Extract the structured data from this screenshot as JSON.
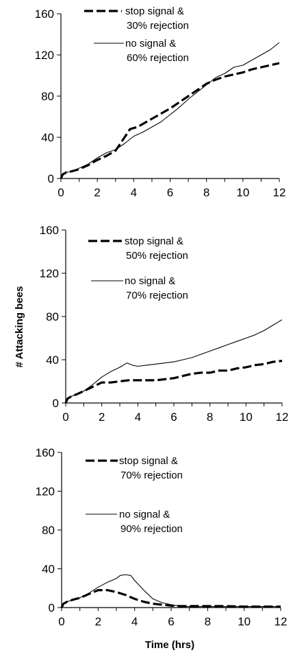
{
  "figure": {
    "ylabel": "# Attacking bees",
    "xlabel": "Time (hrs)"
  },
  "chart_data": [
    {
      "type": "line",
      "title": "",
      "xlabel": "",
      "ylabel": "",
      "xlim": [
        0,
        12
      ],
      "ylim": [
        0,
        160
      ],
      "xticks": [
        "0",
        "2",
        "4",
        "6",
        "8",
        "10",
        "12"
      ],
      "yticks": [
        "0",
        "40",
        "80",
        "120",
        "160"
      ],
      "grid": false,
      "legend_position": "top-center",
      "series": [
        {
          "name": "stop signal & 30% rejection",
          "label_lines": [
            "stop signal &",
            "30% rejection"
          ],
          "style": "dashed",
          "color": "#000000",
          "points": [
            [
              0,
              0
            ],
            [
              0.1,
              4
            ],
            [
              0.3,
              6
            ],
            [
              0.6,
              7
            ],
            [
              1,
              9
            ],
            [
              1.5,
              13
            ],
            [
              2,
              18
            ],
            [
              2.5,
              22
            ],
            [
              3,
              27
            ],
            [
              3.5,
              40
            ],
            [
              3.8,
              48
            ],
            [
              4.2,
              50
            ],
            [
              5,
              58
            ],
            [
              6,
              68
            ],
            [
              7,
              80
            ],
            [
              8,
              92
            ],
            [
              8.5,
              96
            ],
            [
              9,
              99
            ],
            [
              9.5,
              101
            ],
            [
              10,
              103
            ],
            [
              10.5,
              106
            ],
            [
              11,
              108
            ],
            [
              11.5,
              110
            ],
            [
              12,
              112
            ]
          ]
        },
        {
          "name": "no signal & 60% rejection",
          "label_lines": [
            "no signal &",
            "60% rejection"
          ],
          "style": "solid",
          "color": "#000000",
          "points": [
            [
              0,
              0
            ],
            [
              0.1,
              4
            ],
            [
              0.3,
              6
            ],
            [
              0.6,
              7
            ],
            [
              1,
              10
            ],
            [
              1.5,
              14
            ],
            [
              2,
              20
            ],
            [
              2.5,
              25
            ],
            [
              3,
              28
            ],
            [
              3.5,
              34
            ],
            [
              4,
              41
            ],
            [
              4.5,
              45
            ],
            [
              5,
              50
            ],
            [
              5.5,
              55
            ],
            [
              6,
              62
            ],
            [
              6.5,
              69
            ],
            [
              7,
              77
            ],
            [
              7.5,
              84
            ],
            [
              8,
              91
            ],
            [
              8.5,
              98
            ],
            [
              9,
              102
            ],
            [
              9.5,
              108
            ],
            [
              10,
              110
            ],
            [
              10.5,
              115
            ],
            [
              11,
              120
            ],
            [
              11.5,
              125
            ],
            [
              12,
              132
            ]
          ]
        }
      ]
    },
    {
      "type": "line",
      "title": "",
      "xlabel": "",
      "ylabel": "",
      "xlim": [
        0,
        12
      ],
      "ylim": [
        0,
        160
      ],
      "xticks": [
        "0",
        "2",
        "4",
        "6",
        "8",
        "10",
        "12"
      ],
      "yticks": [
        "0",
        "40",
        "80",
        "120",
        "160"
      ],
      "grid": false,
      "legend_position": "top-center",
      "series": [
        {
          "name": "stop signal & 50% rejection",
          "label_lines": [
            "stop signal &",
            "50% rejection"
          ],
          "style": "dashed",
          "color": "#000000",
          "points": [
            [
              0,
              0
            ],
            [
              0.1,
              4
            ],
            [
              0.3,
              6
            ],
            [
              0.6,
              8
            ],
            [
              1,
              11
            ],
            [
              1.5,
              15
            ],
            [
              2,
              19
            ],
            [
              2.5,
              19
            ],
            [
              3,
              20
            ],
            [
              3.5,
              21
            ],
            [
              4,
              21
            ],
            [
              4.5,
              21
            ],
            [
              5,
              21
            ],
            [
              5.5,
              22
            ],
            [
              6,
              23
            ],
            [
              6.5,
              25
            ],
            [
              7,
              27
            ],
            [
              7.5,
              28
            ],
            [
              8,
              28
            ],
            [
              8.5,
              30
            ],
            [
              9,
              30
            ],
            [
              9.5,
              32
            ],
            [
              10,
              33
            ],
            [
              10.5,
              35
            ],
            [
              11,
              36
            ],
            [
              11.5,
              38
            ],
            [
              12,
              39
            ]
          ]
        },
        {
          "name": "no signal & 70% rejection",
          "label_lines": [
            "no signal &",
            "70% rejection"
          ],
          "style": "solid",
          "color": "#000000",
          "points": [
            [
              0,
              0
            ],
            [
              0.1,
              4
            ],
            [
              0.3,
              6
            ],
            [
              0.6,
              8
            ],
            [
              1,
              11
            ],
            [
              1.5,
              17
            ],
            [
              2,
              24
            ],
            [
              2.5,
              29
            ],
            [
              3,
              33
            ],
            [
              3.4,
              37
            ],
            [
              3.7,
              35
            ],
            [
              4,
              34
            ],
            [
              4.5,
              35
            ],
            [
              5,
              36
            ],
            [
              5.5,
              37
            ],
            [
              6,
              38
            ],
            [
              6.5,
              40
            ],
            [
              7,
              42
            ],
            [
              7.5,
              45
            ],
            [
              8,
              48
            ],
            [
              8.5,
              51
            ],
            [
              9,
              54
            ],
            [
              9.5,
              57
            ],
            [
              10,
              60
            ],
            [
              10.5,
              63
            ],
            [
              11,
              67
            ],
            [
              11.5,
              72
            ],
            [
              12,
              77
            ]
          ]
        }
      ]
    },
    {
      "type": "line",
      "title": "",
      "xlabel": "",
      "ylabel": "",
      "xlim": [
        0,
        12
      ],
      "ylim": [
        0,
        160
      ],
      "xticks": [
        "0",
        "2",
        "4",
        "6",
        "8",
        "10",
        "12"
      ],
      "yticks": [
        "0",
        "40",
        "80",
        "120",
        "160"
      ],
      "grid": false,
      "legend_position": "top-center",
      "series": [
        {
          "name": "stop signal & 70% rejection",
          "label_lines": [
            "stop signal &",
            "70% rejection"
          ],
          "style": "dashed",
          "color": "#000000",
          "points": [
            [
              0,
              0
            ],
            [
              0.1,
              4
            ],
            [
              0.3,
              6
            ],
            [
              0.6,
              8
            ],
            [
              1,
              10
            ],
            [
              1.5,
              14
            ],
            [
              2,
              18
            ],
            [
              2.5,
              18
            ],
            [
              3,
              16
            ],
            [
              3.5,
              13
            ],
            [
              4,
              9
            ],
            [
              4.5,
              6
            ],
            [
              5,
              4
            ],
            [
              5.5,
              3
            ],
            [
              6,
              2
            ],
            [
              6.5,
              1.5
            ],
            [
              7,
              1.5
            ],
            [
              8,
              1.5
            ],
            [
              9,
              1.5
            ],
            [
              10,
              1
            ],
            [
              11,
              1
            ],
            [
              12,
              1
            ]
          ]
        },
        {
          "name": "no signal & 90% rejection",
          "label_lines": [
            "no signal &",
            "90% rejection"
          ],
          "style": "solid",
          "color": "#000000",
          "points": [
            [
              0,
              0
            ],
            [
              0.1,
              4
            ],
            [
              0.3,
              6
            ],
            [
              0.6,
              8
            ],
            [
              1,
              10
            ],
            [
              1.5,
              15
            ],
            [
              2,
              21
            ],
            [
              2.5,
              26
            ],
            [
              3,
              30
            ],
            [
              3.2,
              33
            ],
            [
              3.5,
              34
            ],
            [
              3.8,
              33
            ],
            [
              4,
              28
            ],
            [
              4.5,
              18
            ],
            [
              5,
              9
            ],
            [
              5.5,
              5
            ],
            [
              6,
              3
            ],
            [
              6.5,
              1.5
            ],
            [
              7,
              1
            ],
            [
              8,
              1
            ],
            [
              9,
              1
            ],
            [
              10,
              1
            ],
            [
              11,
              1
            ],
            [
              12,
              1
            ]
          ]
        }
      ]
    }
  ]
}
